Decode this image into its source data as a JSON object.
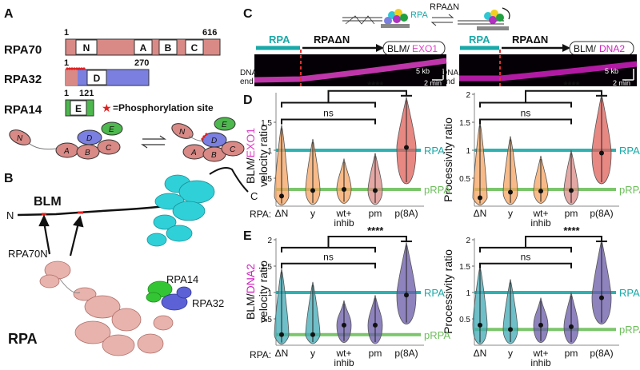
{
  "panels": {
    "a": "A",
    "b": "B",
    "c": "C",
    "d": "D",
    "e": "E"
  },
  "colors": {
    "domain_fill": "#d98a86",
    "rpa32_fill": "#7b7fe0",
    "rpa14_fill": "#4db84d",
    "rpa_line": "#1aa9a9",
    "prpa_line": "#6dbf5b",
    "exo1": "#e040c8",
    "dna2": "#d020c0",
    "violin_orange": "#f4a360",
    "violin_teal": "#3fa9b5",
    "violin_purple": "#6a5aa8"
  },
  "panel_a": {
    "rpa70": {
      "name": "RPA70",
      "start": "1",
      "end": "616",
      "domains": [
        "N",
        "A",
        "B",
        "C"
      ]
    },
    "rpa32": {
      "name": "RPA32",
      "start": "1",
      "end": "270",
      "domains": [
        "D"
      ]
    },
    "rpa14": {
      "name": "RPA14",
      "start": "1",
      "end": "121",
      "domains": [
        "E"
      ]
    },
    "legend": "=Phosphorylation site",
    "cartoon_left": [
      "N",
      "D",
      "E",
      "A",
      "B",
      "C"
    ],
    "cartoon_right": [
      "N",
      "D",
      "E",
      "A",
      "B",
      "C"
    ]
  },
  "panel_b": {
    "blm_label": "BLM",
    "n_term": "N",
    "c_term": "C",
    "rpa70n": "RPA70N",
    "rpa14": "RPA14",
    "rpa32": "RPA32",
    "rpa": "RPA"
  },
  "panel_c": {
    "rpa_label": "RPA",
    "rpadn_label": "RPAΔN",
    "dna_end": "DNA\nend",
    "scale_kb": "5 kb",
    "scale_min": "2 min",
    "left_tag_a": "BLM/",
    "left_tag_b": "EXO1",
    "right_tag_a": "BLM/",
    "right_tag_b": "DNA2",
    "exchange_rpa": "RPA",
    "exchange_rpadn": "RPAΔN"
  },
  "axes": {
    "ticks_y": [
      "0.5",
      "1",
      "1.5",
      "2"
    ],
    "ticks_y_d_left": [
      "0.5",
      "1",
      "1.5"
    ],
    "categories": [
      "ΔN",
      "y",
      "wt+\ninhib",
      "pm",
      "p(8A)"
    ],
    "rpa_prefix": "RPA:",
    "ns": "ns",
    "stars": "****",
    "rpa_line_label": "RPA",
    "prpa_line_label": "pRPA"
  },
  "chart_data": [
    {
      "type": "violin",
      "title": "BLM/EXO1 velocity ratio",
      "ylabel": "BLM/EXO1 velocity ratio",
      "categories": [
        "ΔN",
        "y",
        "wt+ inhib",
        "pm",
        "p(8A)"
      ],
      "medians": [
        0.18,
        0.28,
        0.3,
        0.28,
        1.05
      ],
      "ylim": [
        0,
        2
      ],
      "reference_lines": [
        {
          "name": "RPA",
          "value": 1.0
        },
        {
          "name": "pRPA",
          "value": 0.3
        }
      ],
      "significance": [
        "ns",
        "****"
      ]
    },
    {
      "type": "violin",
      "title": "BLM/EXO1 processivity ratio",
      "ylabel": "Processivity ratio",
      "categories": [
        "ΔN",
        "y",
        "wt+ inhib",
        "pm",
        "p(8A)"
      ],
      "medians": [
        0.15,
        0.25,
        0.27,
        0.28,
        0.95
      ],
      "ylim": [
        0,
        2
      ],
      "reference_lines": [
        {
          "name": "RPA",
          "value": 1.0
        },
        {
          "name": "pRPA",
          "value": 0.3
        }
      ],
      "significance": [
        "ns",
        "****"
      ]
    },
    {
      "type": "violin",
      "title": "BLM/DNA2 velocity ratio",
      "ylabel": "BLM/DNA2 velocity ratio",
      "categories": [
        "ΔN",
        "y",
        "wt+ inhib",
        "pm",
        "p(8A)"
      ],
      "medians": [
        0.2,
        0.2,
        0.38,
        0.38,
        0.95
      ],
      "ylim": [
        0,
        2
      ],
      "reference_lines": [
        {
          "name": "RPA",
          "value": 1.0
        },
        {
          "name": "pRPA",
          "value": 0.2
        }
      ],
      "significance": [
        "ns",
        "****"
      ]
    },
    {
      "type": "violin",
      "title": "BLM/DNA2 processivity ratio",
      "ylabel": "Processivity ratio",
      "categories": [
        "ΔN",
        "y",
        "wt+ inhib",
        "pm",
        "p(8A)"
      ],
      "medians": [
        0.38,
        0.3,
        0.38,
        0.35,
        0.9
      ],
      "ylim": [
        0,
        2
      ],
      "reference_lines": [
        {
          "name": "RPA",
          "value": 1.0
        },
        {
          "name": "pRPA",
          "value": 0.3
        }
      ],
      "significance": [
        "ns",
        "****"
      ]
    }
  ]
}
